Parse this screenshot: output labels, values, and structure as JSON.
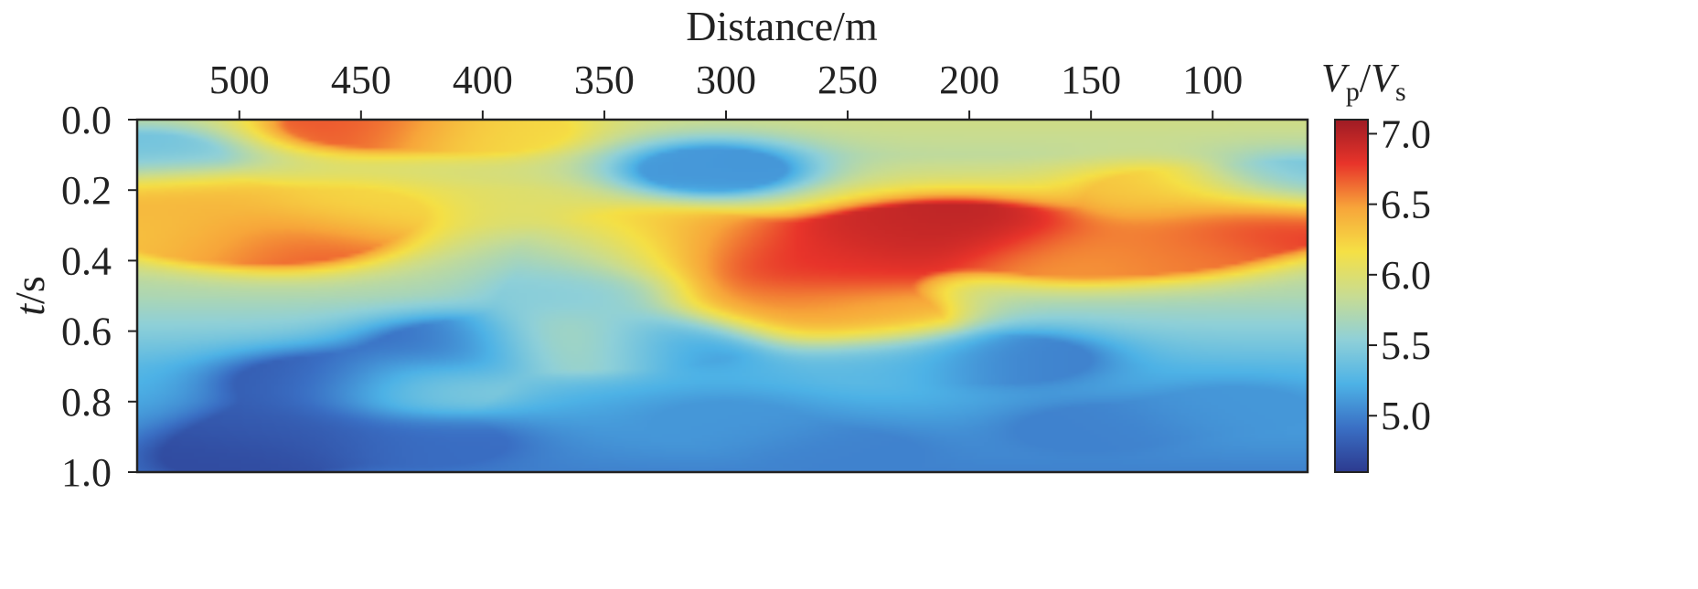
{
  "chart_data": {
    "type": "heatmap",
    "xlabel": "Distance/m",
    "ylabel_var": "t",
    "ylabel_unit": "/s",
    "colorbar_label": {
      "v": "V",
      "p_sub": "p",
      "slash": "/",
      "v2": "V",
      "s_sub": "s"
    },
    "x_ticks": [
      "500",
      "450",
      "400",
      "350",
      "300",
      "250",
      "200",
      "150",
      "100"
    ],
    "x_tick_values": [
      500,
      450,
      400,
      350,
      300,
      250,
      200,
      150,
      100
    ],
    "x_range": [
      542,
      61
    ],
    "x_axis_position": "top",
    "x_reversed": true,
    "y_ticks": [
      "0.0",
      "0.2",
      "0.4",
      "0.6",
      "0.8",
      "1.0"
    ],
    "y_tick_values": [
      0.0,
      0.2,
      0.4,
      0.6,
      0.8,
      1.0
    ],
    "y_range": [
      0.0,
      1.0
    ],
    "y_reversed": true,
    "colorbar_ticks": [
      "7.0",
      "6.5",
      "6.0",
      "5.5",
      "5.0"
    ],
    "colorbar_tick_values": [
      7.0,
      6.5,
      6.0,
      5.5,
      5.0
    ],
    "value_range": [
      4.6,
      7.1
    ],
    "colormap": [
      "#2c3a8f",
      "#3a6fc4",
      "#4db2e6",
      "#8fd0d8",
      "#c8dc92",
      "#f5e045",
      "#f7a53a",
      "#e8342a",
      "#9e1b24"
    ],
    "grid": false,
    "anomalies": [
      {
        "x": 450,
        "t": 0.01,
        "value": 6.7
      },
      {
        "x": 395,
        "t": 0.03,
        "value": 6.2
      },
      {
        "x": 530,
        "t": 0.22,
        "value": 6.4
      },
      {
        "x": 480,
        "t": 0.34,
        "value": 6.7
      },
      {
        "x": 455,
        "t": 0.26,
        "value": 6.2
      },
      {
        "x": 520,
        "t": 0.32,
        "value": 6.3
      },
      {
        "x": 300,
        "t": 0.37,
        "value": 6.8
      },
      {
        "x": 260,
        "t": 0.42,
        "value": 6.8
      },
      {
        "x": 230,
        "t": 0.33,
        "value": 6.9
      },
      {
        "x": 200,
        "t": 0.31,
        "value": 7.0
      },
      {
        "x": 280,
        "t": 0.52,
        "value": 6.6
      },
      {
        "x": 245,
        "t": 0.56,
        "value": 6.4
      },
      {
        "x": 330,
        "t": 0.33,
        "value": 6.3
      },
      {
        "x": 160,
        "t": 0.38,
        "value": 6.5
      },
      {
        "x": 115,
        "t": 0.36,
        "value": 6.6
      },
      {
        "x": 75,
        "t": 0.29,
        "value": 6.8
      },
      {
        "x": 120,
        "t": 0.21,
        "value": 6.3
      },
      {
        "x": 350,
        "t": 0.38,
        "value": 5.6
      },
      {
        "x": 305,
        "t": 0.14,
        "value": 5.1
      },
      {
        "x": 470,
        "t": 0.74,
        "value": 4.8
      },
      {
        "x": 410,
        "t": 0.64,
        "value": 4.9
      },
      {
        "x": 480,
        "t": 0.88,
        "value": 4.8
      },
      {
        "x": 500,
        "t": 0.96,
        "value": 4.7
      },
      {
        "x": 420,
        "t": 0.92,
        "value": 4.9
      },
      {
        "x": 325,
        "t": 0.63,
        "value": 5.0
      },
      {
        "x": 180,
        "t": 0.68,
        "value": 5.0
      },
      {
        "x": 150,
        "t": 0.88,
        "value": 5.0
      },
      {
        "x": 300,
        "t": 0.86,
        "value": 5.1
      },
      {
        "x": 90,
        "t": 0.82,
        "value": 5.1
      },
      {
        "x": 250,
        "t": 0.95,
        "value": 5.0
      },
      {
        "x": 360,
        "t": 0.63,
        "value": 6.0
      },
      {
        "x": 425,
        "t": 0.76,
        "value": 5.5
      },
      {
        "x": 235,
        "t": 0.69,
        "value": 5.3
      },
      {
        "x": 360,
        "t": 0.5,
        "value": 5.5
      },
      {
        "x": 540,
        "t": 0.1,
        "value": 5.4
      },
      {
        "x": 65,
        "t": 0.18,
        "value": 5.4
      }
    ],
    "background_profile": [
      {
        "t": 0.0,
        "value": 5.9
      },
      {
        "t": 0.1,
        "value": 5.8
      },
      {
        "t": 0.2,
        "value": 6.0
      },
      {
        "t": 0.3,
        "value": 6.0
      },
      {
        "t": 0.4,
        "value": 5.8
      },
      {
        "t": 0.5,
        "value": 5.7
      },
      {
        "t": 0.6,
        "value": 5.5
      },
      {
        "t": 0.7,
        "value": 5.3
      },
      {
        "t": 0.8,
        "value": 5.2
      },
      {
        "t": 0.9,
        "value": 5.1
      },
      {
        "t": 1.0,
        "value": 5.0
      }
    ]
  }
}
